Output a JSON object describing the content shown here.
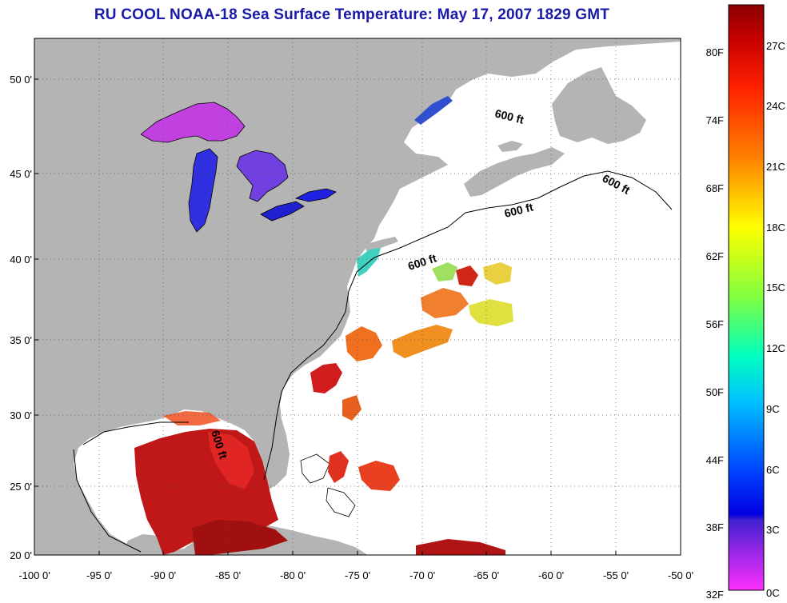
{
  "title": "RU COOL  NOAA-18  Sea Surface Temperature:  May 17, 2007 1829 GMT",
  "axes": {
    "x_ticks": [
      "-100 0'",
      "-95 0'",
      "-90 0'",
      "-85 0'",
      "-80 0'",
      "-75 0'",
      "-70 0'",
      "-65 0'",
      "-60 0'",
      "-55 0'",
      "-50 0'"
    ],
    "y_ticks": [
      "50 0'",
      "45 0'",
      "40 0'",
      "35 0'",
      "30 0'",
      "25 0'",
      "20 0'"
    ]
  },
  "depth_labels": [
    "600 ft",
    "600 ft",
    "600 ft",
    "600 ft",
    "600 ft"
  ],
  "colorbar": {
    "fahrenheit": [
      "80F",
      "74F",
      "68F",
      "62F",
      "56F",
      "50F",
      "44F",
      "38F",
      "32F"
    ],
    "celsius": [
      "27C",
      "24C",
      "21C",
      "18C",
      "15C",
      "12C",
      "9C",
      "6C",
      "3C",
      "0C"
    ]
  },
  "colors": {
    "land": "#b4b4b4",
    "ocean_nodata": "#ffffff",
    "title": "#1a1aa8"
  }
}
